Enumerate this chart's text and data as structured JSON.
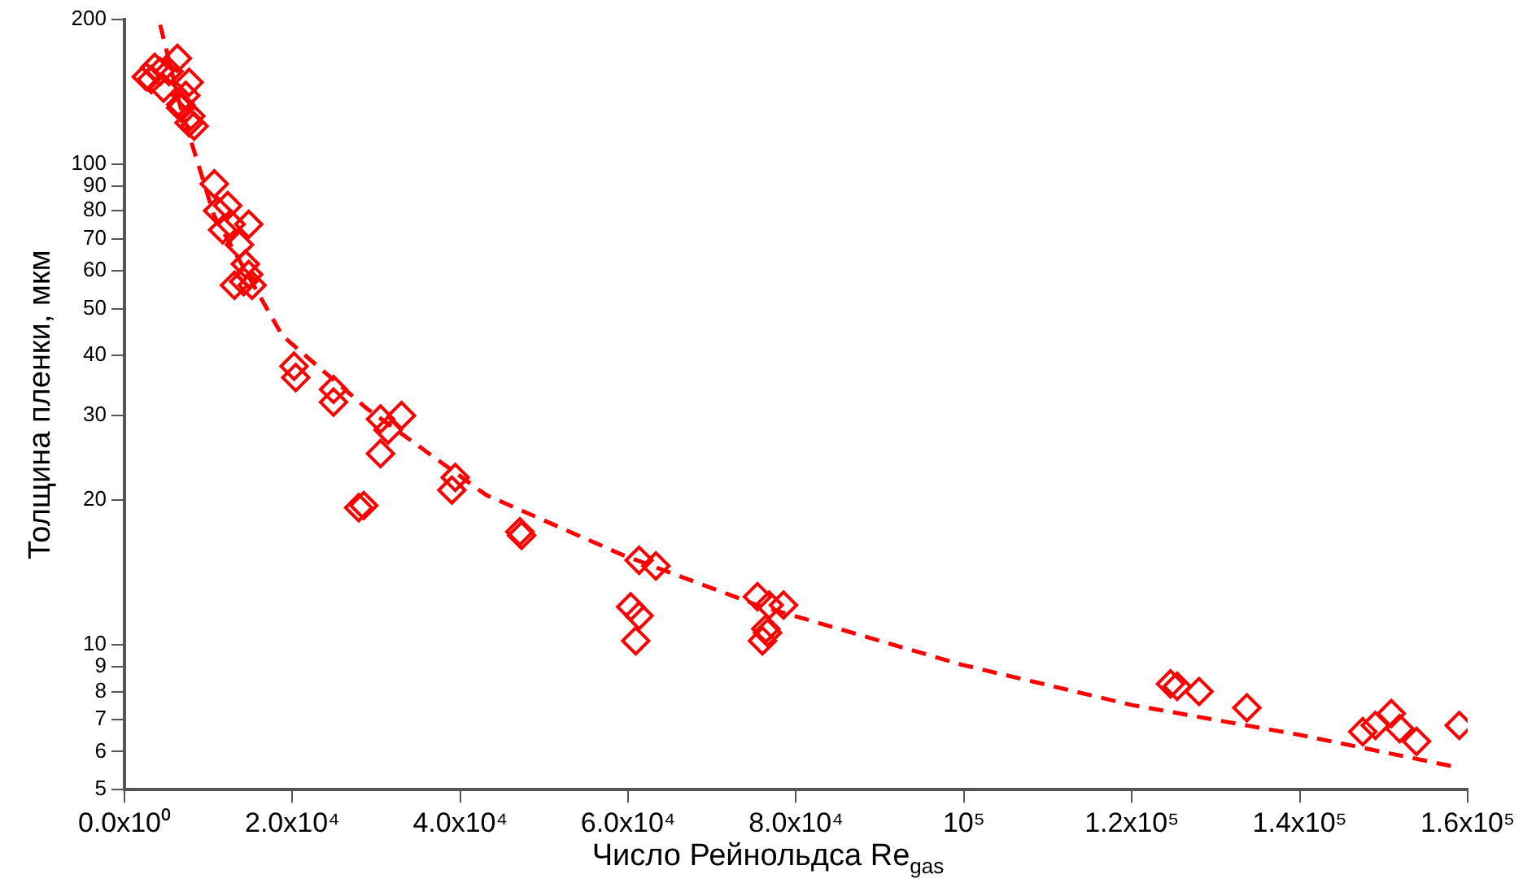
{
  "chart_data": {
    "type": "scatter",
    "xlabel": "Число Рейнольдса Re$_{gas}$",
    "ylabel": "Толщина пленки, мкм",
    "log": "y",
    "grid": false,
    "legend": false,
    "marker": "diamond",
    "xlim": [
      0,
      160000
    ],
    "xticks": [
      {
        "value": 0,
        "label": "0.0x10⁰"
      },
      {
        "value": 20000,
        "label": "2.0x10⁴"
      },
      {
        "value": 40000,
        "label": "4.0x10⁴"
      },
      {
        "value": 60000,
        "label": "6.0x10⁴"
      },
      {
        "value": 80000,
        "label": "8.0x10⁴"
      },
      {
        "value": 100000,
        "label": "10⁵"
      },
      {
        "value": 120000,
        "label": "1.2x10⁵"
      },
      {
        "value": 140000,
        "label": "1.4x10⁵"
      },
      {
        "value": 160000,
        "label": "1.6x10⁵"
      }
    ],
    "ylim": [
      5,
      200
    ],
    "yticks": [
      5,
      6,
      7,
      8,
      9,
      10,
      20,
      30,
      40,
      50,
      60,
      70,
      80,
      90,
      100,
      200
    ],
    "series": [
      {
        "color": "#ff0000",
        "x": [
          2600,
          3200,
          3600,
          4250,
          4650,
          5300,
          6300,
          6700,
          6700,
          7300,
          7700,
          7700,
          7900,
          8300,
          10700,
          11100,
          12300,
          11700,
          12700,
          14800,
          13700,
          14400,
          14200,
          14800,
          13100,
          15200,
          20200,
          20400,
          24900,
          24900,
          30500,
          31400,
          33000,
          30500,
          28500,
          27900,
          39400,
          39000,
          47100,
          47300,
          61300,
          63300,
          60300,
          61300,
          60900,
          75400,
          76800,
          78500,
          76400,
          76000,
          76600,
          124600,
          125400,
          128000,
          133700,
          147500,
          149000,
          150900,
          151900,
          153900,
          159000
        ],
        "values": [
          152,
          150,
          159,
          156,
          144,
          156,
          166,
          133,
          131,
          139,
          148,
          122,
          126,
          120,
          91,
          80,
          82,
          73,
          75,
          75,
          68,
          62,
          57,
          59,
          56,
          56,
          38,
          36,
          34,
          32,
          29.5,
          28,
          30,
          25,
          19.5,
          19.3,
          22.3,
          21,
          17.2,
          16.9,
          15,
          14.6,
          12,
          11.5,
          10.2,
          12.6,
          12.1,
          12.1,
          10.8,
          10.2,
          10.6,
          8.3,
          8.2,
          8,
          7.4,
          6.6,
          6.8,
          7.2,
          6.7,
          6.3,
          6.8
        ]
      },
      {
        "type": "line",
        "color": "#ff0000",
        "line_style": "dashed",
        "marker": "none",
        "x": [
          4250,
          6700,
          10700,
          18800,
          28900,
          43100,
          59300,
          75400,
          99700,
          120000,
          140000,
          158000
        ],
        "values": [
          195,
          131,
          78,
          44,
          31,
          20.5,
          15.4,
          12.1,
          9.1,
          7.5,
          6.5,
          5.6
        ]
      }
    ]
  }
}
